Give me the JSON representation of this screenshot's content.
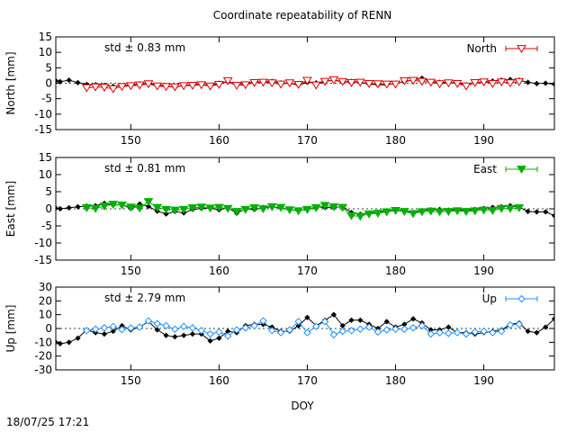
{
  "title": "Coordinate repeatability of RENN",
  "xlabel": "DOY",
  "timestamp": "18/07/25 17:21",
  "chart_data": [
    {
      "type": "line",
      "ylabel": "North [mm]",
      "ylim": [
        -15,
        15
      ],
      "yticks": [
        15,
        10,
        5,
        0,
        -5,
        -10,
        -15
      ],
      "xlim": [
        141.5,
        198
      ],
      "xticks": [
        150,
        160,
        170,
        180,
        190
      ],
      "grid": false,
      "zero_line": true,
      "std_label": "std ± 0.83 mm",
      "legend": "North",
      "legend_position": "top-right",
      "color": "#dd0000",
      "marker": "open-triangle-down",
      "series": [
        {
          "name": "North",
          "x": [
            145,
            146,
            147,
            148,
            149,
            150,
            151,
            152,
            153,
            154,
            155,
            156,
            157,
            158,
            159,
            160,
            161,
            162,
            163,
            164,
            165,
            166,
            167,
            168,
            169,
            170,
            171,
            172,
            173,
            174,
            175,
            176,
            177,
            178,
            179,
            180,
            181,
            182,
            183,
            184,
            185,
            186,
            187,
            188,
            189,
            190,
            191,
            192,
            193,
            194
          ],
          "values": [
            -1.5,
            -1.2,
            -1.3,
            -1.8,
            -1.1,
            -0.8,
            -0.6,
            -0.2,
            -0.9,
            -1.1,
            -1.2,
            -0.8,
            -0.7,
            -0.5,
            -0.9,
            -0.4,
            0.8,
            -0.7,
            -0.5,
            0.2,
            0.3,
            0.1,
            -0.3,
            0.1,
            -0.4,
            0.9,
            -0.6,
            0.6,
            1.1,
            0.5,
            0.2,
            0.3,
            -0.1,
            -0.2,
            -0.3,
            -0.3,
            0.8,
            0.9,
            0.6,
            0.3,
            -0.2,
            0.1,
            -0.1,
            -0.9,
            0.2,
            0.4,
            -0.1,
            0.4,
            0.1,
            0.5
          ]
        },
        {
          "name": "",
          "x": [
            141.5,
            142,
            143,
            144,
            145,
            146,
            147,
            148,
            149,
            150,
            151,
            152,
            153,
            154,
            155,
            156,
            157,
            158,
            159,
            160,
            161,
            162,
            163,
            164,
            165,
            166,
            167,
            168,
            169,
            170,
            171,
            172,
            173,
            174,
            175,
            176,
            177,
            178,
            179,
            180,
            181,
            182,
            183,
            184,
            185,
            186,
            187,
            188,
            189,
            190,
            191,
            192,
            193,
            194,
            195,
            196,
            197,
            198
          ],
          "values": [
            0.8,
            0.5,
            1.0,
            0.2,
            -0.4,
            -0.5,
            -0.7,
            -1.0,
            -0.8,
            -0.6,
            -0.2,
            0.0,
            -0.6,
            -0.9,
            -1.3,
            -0.7,
            -0.5,
            -0.3,
            -0.8,
            0.0,
            0.4,
            -0.6,
            -0.3,
            0.5,
            0.3,
            0.6,
            0.1,
            0.0,
            -0.6,
            0.3,
            0.1,
            0.6,
            1.0,
            0.4,
            0.6,
            0.2,
            -0.3,
            -0.5,
            -0.5,
            0.0,
            0.5,
            1.1,
            1.6,
            0.5,
            0.3,
            0.2,
            0.1,
            -0.5,
            0.1,
            0.3,
            0.7,
            1.0,
            1.2,
            1.0,
            0.3,
            -0.1,
            0.0,
            -0.3
          ]
        }
      ]
    },
    {
      "type": "line",
      "ylabel": "East [mm]",
      "ylim": [
        -15,
        15
      ],
      "yticks": [
        15,
        10,
        5,
        0,
        -5,
        -10,
        -15
      ],
      "xlim": [
        141.5,
        198
      ],
      "xticks": [
        150,
        160,
        170,
        180,
        190
      ],
      "grid": false,
      "zero_line": true,
      "std_label": "std ± 0.81 mm",
      "legend": "East",
      "legend_position": "top-right",
      "color": "#00b000",
      "marker": "filled-triangle-down",
      "series": [
        {
          "name": "East",
          "x": [
            145,
            146,
            147,
            148,
            149,
            150,
            151,
            152,
            153,
            154,
            155,
            156,
            157,
            158,
            159,
            160,
            161,
            162,
            163,
            164,
            165,
            166,
            167,
            168,
            169,
            170,
            171,
            172,
            173,
            174,
            175,
            176,
            177,
            178,
            179,
            180,
            181,
            182,
            183,
            184,
            185,
            186,
            187,
            188,
            189,
            190,
            191,
            192,
            193,
            194
          ],
          "values": [
            0.3,
            0.1,
            0.8,
            1.3,
            1.1,
            0.5,
            0.2,
            2.1,
            0.4,
            -0.2,
            -0.4,
            -0.2,
            0.3,
            0.5,
            0.2,
            0.4,
            0.1,
            -0.8,
            -0.2,
            0.3,
            0.0,
            0.6,
            0.4,
            -0.3,
            -0.6,
            -0.2,
            0.3,
            1.0,
            0.6,
            0.4,
            -2.0,
            -2.2,
            -1.5,
            -1.3,
            -0.9,
            -0.5,
            -0.8,
            -1.4,
            -0.9,
            -0.7,
            -0.9,
            -0.8,
            -0.6,
            -0.8,
            -0.6,
            -0.4,
            -0.5,
            0.1,
            0.1,
            0.3
          ]
        },
        {
          "name": "",
          "x": [
            141.5,
            142,
            143,
            144,
            145,
            146,
            147,
            148,
            149,
            150,
            151,
            152,
            153,
            154,
            155,
            156,
            157,
            158,
            159,
            160,
            161,
            162,
            163,
            164,
            165,
            166,
            167,
            168,
            169,
            170,
            171,
            172,
            173,
            174,
            175,
            176,
            177,
            178,
            179,
            180,
            181,
            182,
            183,
            184,
            185,
            186,
            187,
            188,
            189,
            190,
            191,
            192,
            193,
            194,
            195,
            196,
            197,
            198
          ],
          "values": [
            0.2,
            0.0,
            0.3,
            0.6,
            0.8,
            0.9,
            1.6,
            1.1,
            1.2,
            0.1,
            1.4,
            0.7,
            -0.7,
            -1.5,
            -0.8,
            -1.2,
            -0.2,
            0.1,
            0.2,
            -0.3,
            0.3,
            -1.3,
            0.0,
            -0.2,
            0.4,
            0.6,
            0.2,
            -0.3,
            -0.5,
            -0.3,
            0.6,
            0.4,
            0.3,
            0.7,
            -1.1,
            -1.6,
            -1.2,
            -1.0,
            -0.6,
            -0.4,
            -0.6,
            -1.1,
            -0.5,
            -0.3,
            -0.2,
            -0.4,
            -0.3,
            -0.5,
            -0.2,
            0.1,
            0.4,
            0.6,
            0.9,
            0.5,
            -0.8,
            -0.9,
            -0.9,
            -2.0
          ]
        }
      ]
    },
    {
      "type": "line",
      "ylabel": "Up [mm]",
      "ylim": [
        -30,
        30
      ],
      "yticks": [
        30,
        20,
        10,
        0,
        -10,
        -20,
        -30
      ],
      "xlim": [
        141.5,
        198
      ],
      "xticks": [
        150,
        160,
        170,
        180,
        190
      ],
      "grid": false,
      "zero_line": true,
      "std_label": "std ± 2.79 mm",
      "legend": "Up",
      "legend_position": "top-right",
      "color": "#1e90ff",
      "marker": "open-diamond",
      "series": [
        {
          "name": "Up",
          "x": [
            145,
            146,
            147,
            148,
            149,
            150,
            151,
            152,
            153,
            154,
            155,
            156,
            157,
            158,
            159,
            160,
            161,
            162,
            163,
            164,
            165,
            166,
            167,
            168,
            169,
            170,
            171,
            172,
            173,
            174,
            175,
            176,
            177,
            178,
            179,
            180,
            181,
            182,
            183,
            184,
            185,
            186,
            187,
            188,
            189,
            190,
            191,
            192,
            193,
            194
          ],
          "values": [
            -1.5,
            -0.5,
            0.5,
            1.5,
            -0.8,
            0.3,
            1.0,
            5.5,
            3.5,
            2.0,
            -0.5,
            1.5,
            0.5,
            -1.5,
            -4.0,
            -2.5,
            -5.5,
            -1.0,
            0.5,
            2.0,
            5.5,
            -1.5,
            -3.0,
            -1.0,
            5.0,
            -3.0,
            1.5,
            5.0,
            -4.5,
            -2.0,
            -1.5,
            -0.5,
            1.0,
            -2.5,
            -1.0,
            -0.5,
            -0.5,
            0.5,
            2.0,
            -4.0,
            -3.0,
            -3.5,
            -3.0,
            -4.0,
            -2.5,
            -2.0,
            -3.0,
            -2.0,
            2.5,
            3.0
          ]
        },
        {
          "name": "",
          "x": [
            141.5,
            142,
            143,
            144,
            145,
            146,
            147,
            148,
            149,
            150,
            151,
            152,
            153,
            154,
            155,
            156,
            157,
            158,
            159,
            160,
            161,
            162,
            163,
            164,
            165,
            166,
            167,
            168,
            169,
            170,
            171,
            172,
            173,
            174,
            175,
            176,
            177,
            178,
            179,
            180,
            181,
            182,
            183,
            184,
            185,
            186,
            187,
            188,
            189,
            190,
            191,
            192,
            193,
            194,
            195,
            196,
            197,
            198
          ],
          "values": [
            -10,
            -11,
            -10,
            -7,
            -1,
            -3,
            -4,
            -2,
            2,
            -1,
            1,
            5,
            -1,
            -5,
            -6,
            -5,
            -4,
            -4,
            -9,
            -7,
            -2,
            -3,
            2,
            3,
            3,
            1,
            -2,
            -2,
            2,
            8,
            2,
            6,
            10,
            2,
            6,
            6,
            3,
            0,
            5,
            1,
            3,
            7,
            4,
            -1,
            -1,
            1,
            -3,
            -3,
            -4,
            -3,
            -2,
            -1,
            3,
            4,
            -2,
            -3,
            1,
            7
          ]
        }
      ]
    }
  ]
}
